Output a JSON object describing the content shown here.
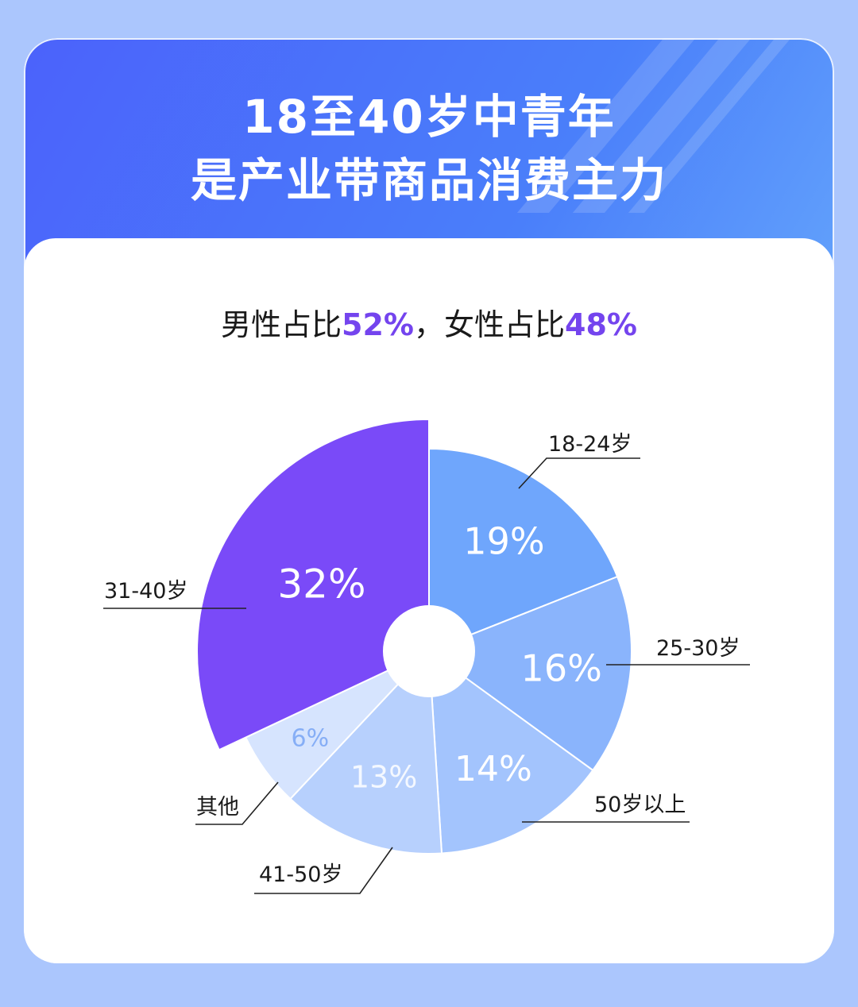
{
  "header": {
    "title_line1": "18至40岁中青年",
    "title_line2": "是产业带商品消费主力"
  },
  "subtitle": {
    "male_label": "男性占比",
    "male_value": "52%",
    "separator": "，",
    "female_label": "女性占比",
    "female_value": "48%"
  },
  "colors": {
    "accent": "#7444ee",
    "background": "#abc6fd"
  },
  "chart_data": {
    "type": "pie",
    "variant": "rose-like pie with donut hole, largest slice has larger radius",
    "slices": [
      {
        "label": "18-24岁",
        "value": 19,
        "value_label": "19%",
        "color": "#6fa6fc"
      },
      {
        "label": "25-30岁",
        "value": 16,
        "value_label": "16%",
        "color": "#8ab4fc"
      },
      {
        "label": "50岁以上",
        "value": 14,
        "value_label": "14%",
        "color": "#a3c4fd"
      },
      {
        "label": "41-50岁",
        "value": 13,
        "value_label": "13%",
        "color": "#b7d0fd"
      },
      {
        "label": "其他",
        "value": 6,
        "value_label": "6%",
        "color": "#d6e4fe"
      },
      {
        "label": "31-40岁",
        "value": 32,
        "value_label": "32%",
        "color": "#7a4af8"
      }
    ]
  }
}
